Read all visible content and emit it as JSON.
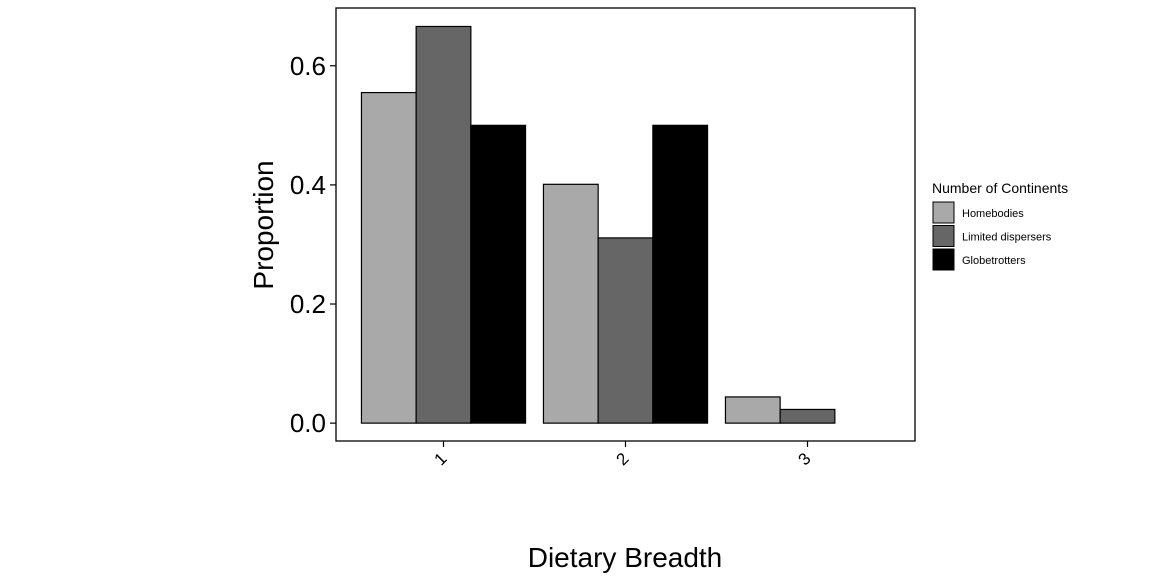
{
  "chart_data": {
    "type": "bar",
    "categories": [
      "1",
      "2",
      "3"
    ],
    "series": [
      {
        "name": "Homebodies",
        "color": "#a9a9a9",
        "values": [
          0.555,
          0.401,
          0.044
        ]
      },
      {
        "name": "Limited dispersers",
        "color": "#666666",
        "values": [
          0.666,
          0.311,
          0.023
        ]
      },
      {
        "name": "Globetrotters",
        "color": "#000000",
        "values": [
          0.5,
          0.5,
          0.0
        ]
      }
    ],
    "title": "",
    "xlabel": "Dietary Breadth",
    "ylabel": "Proportion",
    "ylim": [
      -0.03,
      0.697
    ],
    "yticks": [
      "0.0",
      "0.2",
      "0.4",
      "0.6"
    ],
    "ytick_values": [
      0.0,
      0.2,
      0.4,
      0.6
    ],
    "grid": false,
    "legend": {
      "title": "Number of Continents",
      "position": "right"
    }
  }
}
